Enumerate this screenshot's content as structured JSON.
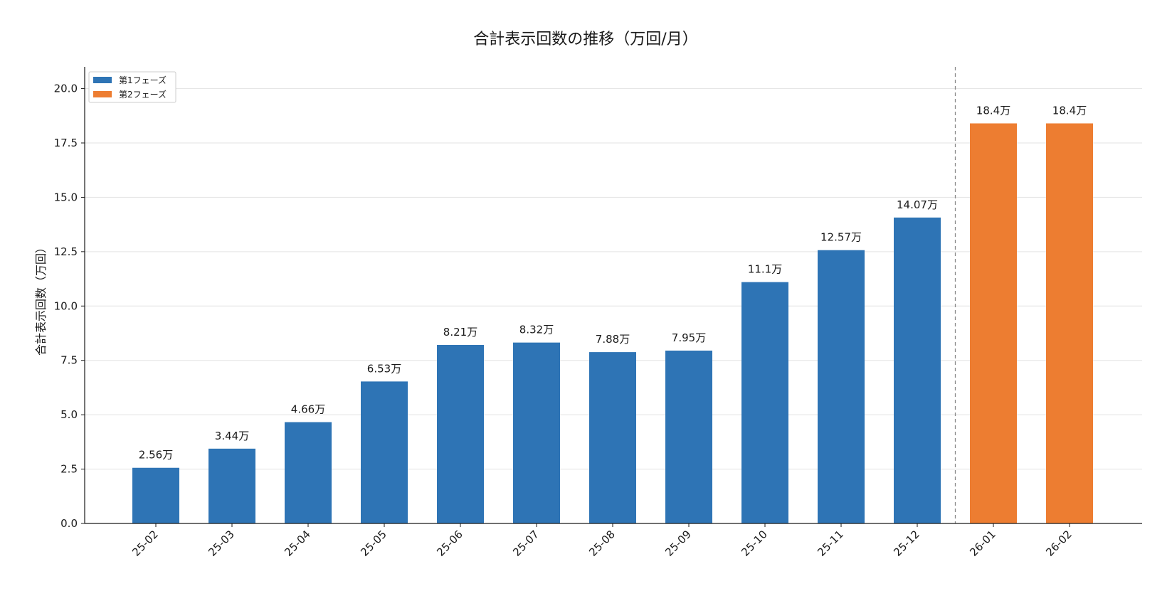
{
  "chart_data": {
    "type": "bar",
    "title": "合計表示回数の推移（万回/月）",
    "xlabel": "",
    "ylabel": "合計表示回数（万回）",
    "ylim": [
      0,
      21
    ],
    "yticks": [
      "0.0",
      "2.5",
      "5.0",
      "7.5",
      "10.0",
      "12.5",
      "15.0",
      "17.5",
      "20.0"
    ],
    "grid": "horizontal",
    "legend_position": "top-left",
    "divider_after_category": "25-12",
    "categories": [
      "25-02",
      "25-03",
      "25-04",
      "25-05",
      "25-06",
      "25-07",
      "25-08",
      "25-09",
      "25-10",
      "25-11",
      "25-12",
      "26-01",
      "26-02"
    ],
    "values": [
      2.56,
      3.44,
      4.66,
      6.53,
      8.21,
      8.32,
      7.88,
      7.95,
      11.1,
      12.57,
      14.07,
      18.4,
      18.4
    ],
    "value_labels": [
      "2.56万",
      "3.44万",
      "4.66万",
      "6.53万",
      "8.21万",
      "8.32万",
      "7.88万",
      "7.95万",
      "11.1万",
      "12.57万",
      "14.07万",
      "18.4万",
      "18.4万"
    ],
    "phase": [
      0,
      0,
      0,
      0,
      0,
      0,
      0,
      0,
      0,
      0,
      0,
      1,
      1
    ],
    "series": [
      {
        "name": "第1フェーズ",
        "color": "#2e74b5"
      },
      {
        "name": "第2フェーズ",
        "color": "#ed7d31"
      }
    ]
  }
}
